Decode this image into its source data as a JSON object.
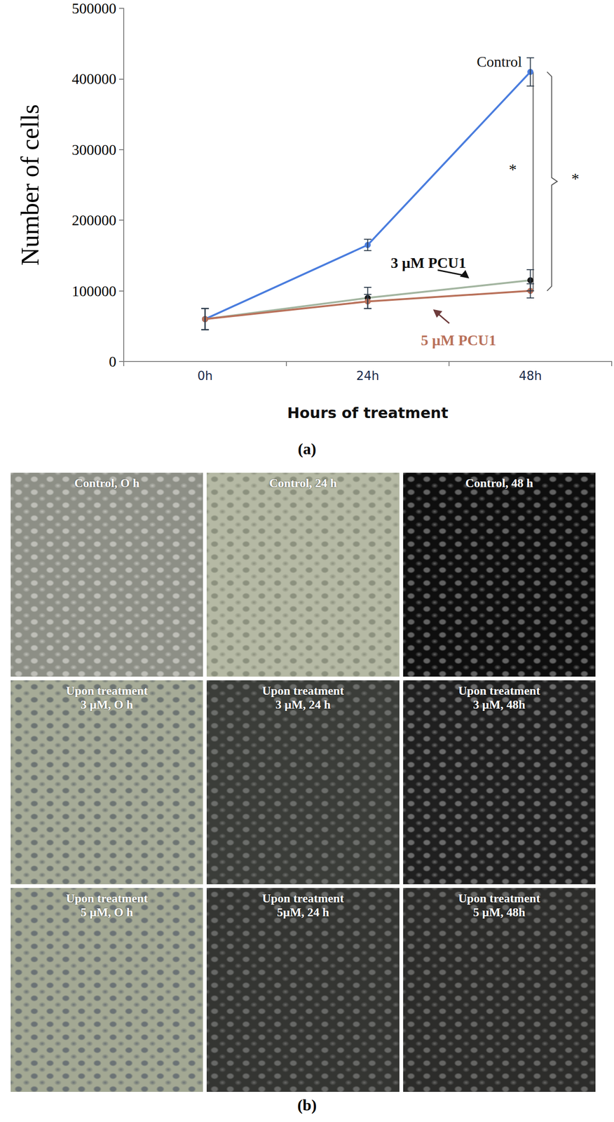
{
  "chart_data": {
    "type": "line",
    "x_label": "Hours of treatment",
    "y_label": "Number of cells",
    "categories": [
      "0h",
      "24h",
      "48h"
    ],
    "ylim": [
      0,
      500000
    ],
    "yticks": [
      0,
      100000,
      200000,
      300000,
      400000,
      500000
    ],
    "grid": false,
    "series": [
      {
        "name": "Control",
        "color": "#4a7dde",
        "marker": "circle",
        "values": [
          60000,
          165000,
          410000
        ],
        "errors": [
          15000,
          8000,
          20000
        ]
      },
      {
        "name": "3 µM PCU1",
        "color": "#a3b5a0",
        "marker": "circle",
        "values": [
          60000,
          90000,
          115000
        ],
        "errors": [
          15000,
          15000,
          15000
        ]
      },
      {
        "name": "5 µM PCU1",
        "color": "#b9715a",
        "marker": "circle",
        "values": [
          60000,
          85000,
          100000
        ],
        "errors": [
          15000,
          10000,
          10000
        ]
      }
    ],
    "annotations": [
      {
        "text": "*",
        "x": "48h",
        "y": 272000
      },
      {
        "text": "*",
        "x": "48h",
        "y": 259000
      }
    ]
  },
  "panel_labels": [
    "(a)",
    "(b)"
  ],
  "micrographs": [
    {
      "lines": [
        "Control, O h"
      ]
    },
    {
      "lines": [
        "Control, 24 h"
      ]
    },
    {
      "lines": [
        "Control, 48 h"
      ]
    },
    {
      "lines": [
        "Upon treatment",
        "3 µM, O h"
      ]
    },
    {
      "lines": [
        "Upon treatment",
        "3 µM, 24 h"
      ]
    },
    {
      "lines": [
        "Upon treatment",
        "3 µM, 48h"
      ]
    },
    {
      "lines": [
        "Upon treatment",
        "5 µM, O h"
      ]
    },
    {
      "lines": [
        "Upon treatment",
        "5µM, 24 h"
      ]
    },
    {
      "lines": [
        "Upon treatment",
        "5 µM, 48h"
      ]
    }
  ]
}
